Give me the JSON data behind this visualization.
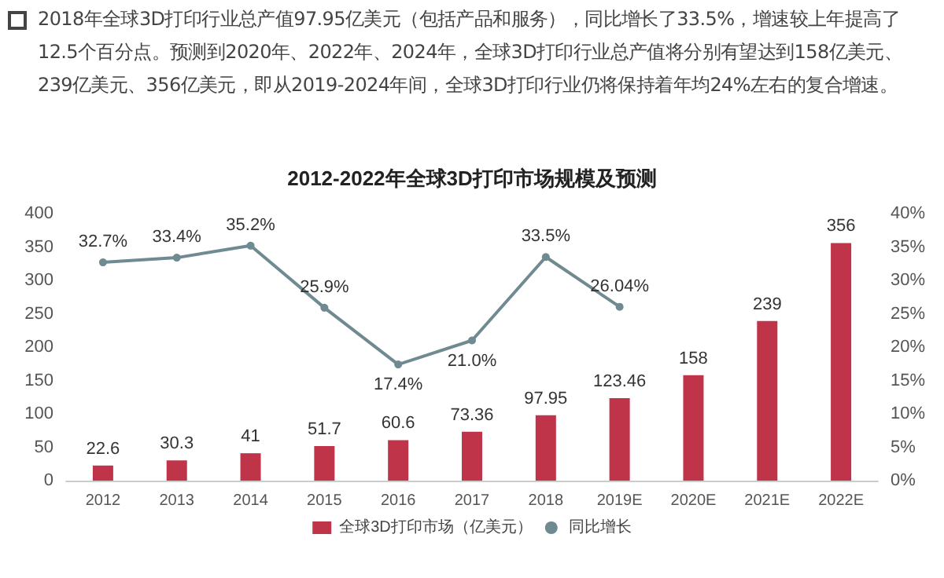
{
  "chart_data": {
    "type": "bar",
    "title": "2012-2022年全球3D打印市场规模及预测",
    "annotations": [
      "2018年全球3D打印行业总产值97.95亿美元（包括产品和服务），同比增长了33.5%，增速较上年提高了12.5个百分点。预测到2020年、2022年、2024年，全球3D打印行业总产值将分别有望达到158亿美元、239亿美元、356亿美元，即从2019-2024年间，全球3D打印行业仍将保持着年均24%左右的复合增速。"
    ],
    "categories": [
      "2012",
      "2013",
      "2014",
      "2015",
      "2016",
      "2017",
      "2018",
      "2019E",
      "2020E",
      "2021E",
      "2022E"
    ],
    "series": [
      {
        "name": "全球3D打印市场（亿美元）",
        "color": "#c0344a",
        "values": [
          22.6,
          30.3,
          41,
          51.7,
          60.6,
          73.36,
          97.95,
          123.46,
          158,
          239,
          356
        ],
        "value_labels": [
          "22.6",
          "30.3",
          "41",
          "51.7",
          "60.6",
          "73.36",
          "97.95",
          "123.46",
          "158",
          "239",
          "356"
        ]
      },
      {
        "name": "同比增长",
        "type": "line",
        "axis": "y2",
        "color": "#6f8a91",
        "marker": "circle",
        "values": [
          32.7,
          33.4,
          35.2,
          25.9,
          17.4,
          21.0,
          33.5,
          26.04,
          null,
          null,
          null
        ],
        "value_labels": [
          "32.7%",
          "33.4%",
          "35.2%",
          "25.9%",
          "17.4%",
          "21.0%",
          "33.5%",
          "26.04%",
          null,
          null,
          null
        ]
      }
    ],
    "ylim": [
      0,
      400
    ],
    "yticks": [
      0,
      50,
      100,
      150,
      200,
      250,
      300,
      350,
      400
    ],
    "y2lim": [
      0,
      40
    ],
    "y2ticks": [
      {
        "value": 0,
        "label": "0%"
      },
      {
        "value": 5,
        "label": "5%"
      },
      {
        "value": 10,
        "label": "10%"
      },
      {
        "value": 15,
        "label": "15%"
      },
      {
        "value": 20,
        "label": "20%"
      },
      {
        "value": 25,
        "label": "25%"
      },
      {
        "value": 30,
        "label": "30%"
      },
      {
        "value": 35,
        "label": "35%"
      },
      {
        "value": 40,
        "label": "40%"
      }
    ],
    "grid": false,
    "legend": "bottom"
  }
}
